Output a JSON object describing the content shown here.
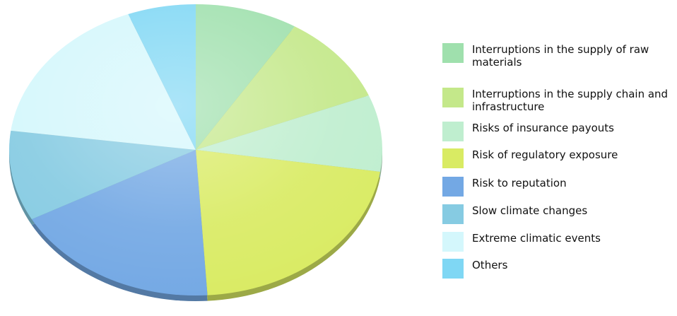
{
  "chart_data": {
    "type": "pie",
    "title": "",
    "series": [
      {
        "label": "Interruptions in the supply of raw materials",
        "value": 8.9,
        "color": "#9fe0ad"
      },
      {
        "label": "Interruptions in the supply chain and infrastructure",
        "value": 10.0,
        "color": "#c4e88a"
      },
      {
        "label": "Risks of insurance payouts",
        "value": 8.5,
        "color": "#bfeecf"
      },
      {
        "label": "Risk of regulatory exposure",
        "value": 21.6,
        "color": "#d9eb63"
      },
      {
        "label": "Risk to reputation",
        "value": 18.1,
        "color": "#73a8e4"
      },
      {
        "label": "Slow climate changes",
        "value": 10.0,
        "color": "#86cbe2"
      },
      {
        "label": "Extreme climatic events",
        "value": 17.0,
        "color": "#d4f7fc"
      },
      {
        "label": "Others",
        "value": 5.9,
        "color": "#7fd7f4"
      }
    ],
    "legend_position": "right"
  }
}
